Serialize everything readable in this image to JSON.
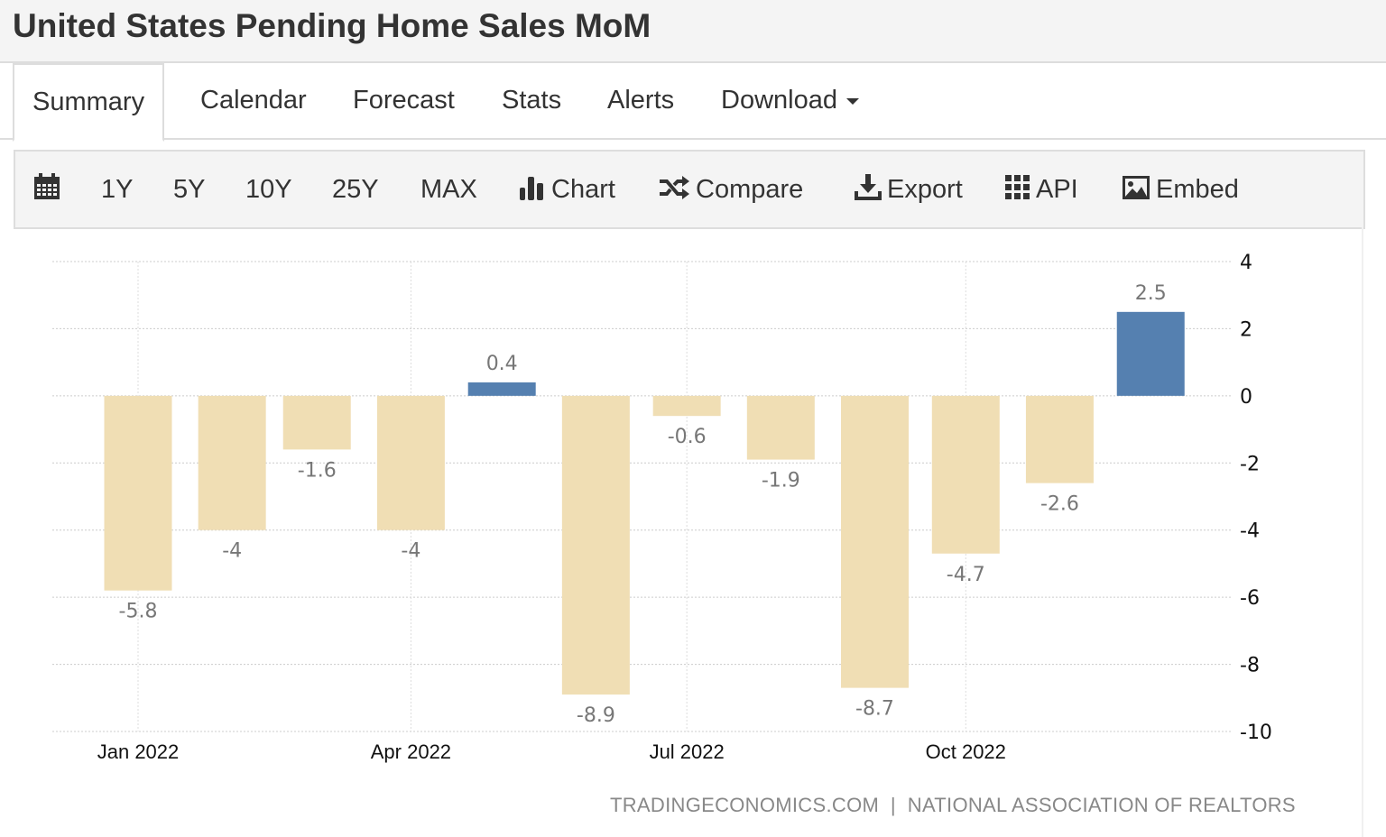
{
  "title": "United States Pending Home Sales MoM",
  "tabs": [
    {
      "label": "Summary"
    },
    {
      "label": "Calendar"
    },
    {
      "label": "Forecast"
    },
    {
      "label": "Stats"
    },
    {
      "label": "Alerts"
    },
    {
      "label": "Download"
    }
  ],
  "toolbar": {
    "ranges": [
      "1Y",
      "5Y",
      "10Y",
      "25Y",
      "MAX"
    ],
    "chart": "Chart",
    "compare": "Compare",
    "export": "Export",
    "api": "API",
    "embed": "Embed"
  },
  "source": "TRADINGECONOMICS.COM  |  NATIONAL ASSOCIATION OF REALTORS",
  "colors": {
    "positive": "#5580b0",
    "negative": "#f0deb4"
  },
  "chart_data": {
    "type": "bar",
    "categories": [
      "Jan 2022",
      "Feb 2022",
      "Mar 2022",
      "Apr 2022",
      "May 2022",
      "Jun 2022",
      "Jul 2022",
      "Aug 2022",
      "Sep 2022",
      "Oct 2022",
      "Nov 2022",
      "Dec 2022"
    ],
    "values": [
      -5.8,
      -4,
      -1.6,
      -4,
      0.4,
      -8.9,
      -0.6,
      -1.9,
      -8.7,
      -4.7,
      -2.6,
      2.5
    ],
    "x_tick_labels": [
      "Jan 2022",
      "Apr 2022",
      "Jul 2022",
      "Oct 2022"
    ],
    "y_ticks": [
      4,
      2,
      0,
      -2,
      -4,
      -6,
      -8,
      -10
    ],
    "ylim": [
      -10,
      4
    ],
    "grid": true,
    "y_axis_side": "right"
  }
}
